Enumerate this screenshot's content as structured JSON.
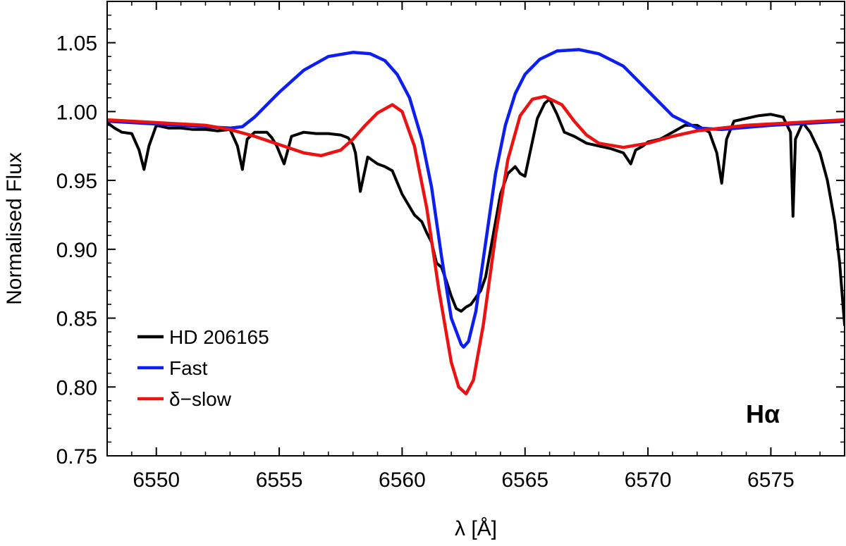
{
  "chart_data": {
    "type": "line",
    "xlabel": "λ [Å]",
    "ylabel": "Normalised Flux",
    "xlim": [
      6548,
      6578
    ],
    "ylim": [
      0.75,
      1.08
    ],
    "x_ticks": [
      6550,
      6555,
      6560,
      6565,
      6570,
      6575
    ],
    "y_ticks": [
      0.75,
      0.8,
      0.85,
      0.9,
      0.95,
      1.0,
      1.05
    ],
    "x_tick_labels": [
      "6550",
      "6555",
      "6560",
      "6565",
      "6570",
      "6575"
    ],
    "y_tick_labels": [
      "0.75",
      "0.80",
      "0.85",
      "0.90",
      "0.95",
      "1.00",
      "1.05"
    ],
    "grid": false,
    "legend_position": "bottom-left",
    "annotation": {
      "text": "Hα",
      "position": "bottom-right"
    },
    "series": [
      {
        "name": "HD 206165",
        "color": "#000000",
        "x": [
          6548.0,
          6548.3,
          6548.6,
          6549.0,
          6549.3,
          6549.5,
          6549.7,
          6550.0,
          6550.5,
          6551.0,
          6551.5,
          6552.0,
          6552.5,
          6553.0,
          6553.3,
          6553.5,
          6553.7,
          6554.0,
          6554.5,
          6554.7,
          6554.9,
          6555.2,
          6555.5,
          6556.0,
          6556.5,
          6557.0,
          6557.5,
          6557.8,
          6558.0,
          6558.1,
          6558.3,
          6558.6,
          6559.0,
          6559.3,
          6559.6,
          6560.0,
          6560.5,
          6560.8,
          6561.0,
          6561.2,
          6561.4,
          6561.6,
          6561.8,
          6562.0,
          6562.2,
          6562.4,
          6562.6,
          6562.8,
          6563.0,
          6563.2,
          6563.4,
          6563.6,
          6563.8,
          6564.0,
          6564.3,
          6564.6,
          6564.8,
          6565.0,
          6565.2,
          6565.5,
          6565.8,
          6566.0,
          6566.3,
          6566.6,
          6567.0,
          6567.5,
          6568.0,
          6568.5,
          6569.0,
          6569.3,
          6569.5,
          6569.8,
          6570.0,
          6570.5,
          6571.0,
          6571.5,
          6572.0,
          6572.5,
          6572.8,
          6573.0,
          6573.2,
          6573.5,
          6574.0,
          6574.5,
          6575.0,
          6575.5,
          6575.8,
          6575.9,
          6576.0,
          6576.3,
          6576.6,
          6577.0,
          6577.3,
          6577.6,
          6577.8,
          6578.0
        ],
        "y": [
          0.992,
          0.988,
          0.985,
          0.984,
          0.972,
          0.958,
          0.975,
          0.99,
          0.988,
          0.988,
          0.987,
          0.987,
          0.986,
          0.987,
          0.975,
          0.958,
          0.98,
          0.985,
          0.985,
          0.981,
          0.975,
          0.962,
          0.982,
          0.985,
          0.984,
          0.984,
          0.983,
          0.981,
          0.976,
          0.97,
          0.942,
          0.967,
          0.962,
          0.96,
          0.957,
          0.94,
          0.925,
          0.92,
          0.912,
          0.905,
          0.89,
          0.887,
          0.877,
          0.866,
          0.857,
          0.855,
          0.858,
          0.86,
          0.865,
          0.87,
          0.88,
          0.9,
          0.92,
          0.94,
          0.955,
          0.96,
          0.955,
          0.953,
          0.97,
          0.995,
          1.006,
          1.009,
          0.998,
          0.985,
          0.982,
          0.977,
          0.975,
          0.973,
          0.97,
          0.962,
          0.972,
          0.975,
          0.978,
          0.98,
          0.985,
          0.99,
          0.99,
          0.985,
          0.97,
          0.948,
          0.98,
          0.993,
          0.995,
          0.997,
          0.998,
          0.996,
          0.985,
          0.924,
          0.98,
          0.992,
          0.985,
          0.97,
          0.95,
          0.92,
          0.89,
          0.845
        ]
      },
      {
        "name": "Fast",
        "color": "#0d1ef2",
        "x": [
          6548.0,
          6550.0,
          6552.0,
          6553.0,
          6553.5,
          6554.0,
          6555.0,
          6556.0,
          6557.0,
          6558.0,
          6558.7,
          6559.3,
          6559.8,
          6560.3,
          6560.8,
          6561.2,
          6561.6,
          6562.0,
          6562.4,
          6562.5,
          6562.7,
          6563.0,
          6563.4,
          6563.8,
          6564.2,
          6564.6,
          6565.0,
          6565.6,
          6566.3,
          6567.2,
          6568.0,
          6569.0,
          6570.0,
          6571.0,
          6572.0,
          6573.0,
          6575.0,
          6578.0
        ],
        "y": [
          0.993,
          0.991,
          0.989,
          0.988,
          0.989,
          0.996,
          1.014,
          1.03,
          1.04,
          1.043,
          1.042,
          1.037,
          1.027,
          1.01,
          0.98,
          0.945,
          0.895,
          0.85,
          0.831,
          0.829,
          0.833,
          0.855,
          0.905,
          0.955,
          0.99,
          1.013,
          1.027,
          1.038,
          1.044,
          1.045,
          1.042,
          1.033,
          1.015,
          0.997,
          0.988,
          0.987,
          0.99,
          0.993
        ]
      },
      {
        "name": "δ−slow",
        "color": "#ee1111",
        "x": [
          6548.0,
          6550.0,
          6552.0,
          6553.0,
          6554.0,
          6555.0,
          6556.0,
          6556.7,
          6557.5,
          6558.0,
          6558.5,
          6559.0,
          6559.6,
          6560.0,
          6560.5,
          6561.0,
          6561.5,
          6562.0,
          6562.3,
          6562.6,
          6562.9,
          6563.3,
          6563.8,
          6564.3,
          6564.8,
          6565.3,
          6565.8,
          6566.5,
          6567.0,
          6567.5,
          6568.0,
          6569.0,
          6570.0,
          6571.0,
          6572.0,
          6574.0,
          6576.0,
          6578.0
        ],
        "y": [
          0.994,
          0.992,
          0.99,
          0.987,
          0.982,
          0.976,
          0.97,
          0.968,
          0.972,
          0.98,
          0.99,
          0.999,
          1.005,
          1.0,
          0.975,
          0.93,
          0.87,
          0.818,
          0.8,
          0.795,
          0.805,
          0.845,
          0.91,
          0.965,
          0.997,
          1.009,
          1.011,
          1.005,
          0.993,
          0.983,
          0.977,
          0.974,
          0.977,
          0.982,
          0.986,
          0.99,
          0.992,
          0.994
        ]
      }
    ]
  }
}
